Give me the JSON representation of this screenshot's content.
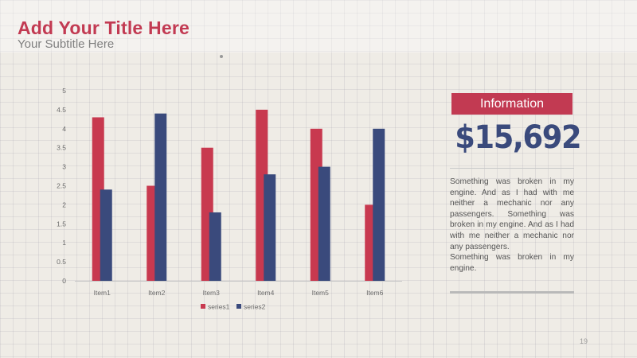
{
  "slide": {
    "title": "Add Your Title Here",
    "subtitle": "Your Subtitle Here",
    "page_number": "19"
  },
  "info": {
    "label": "Information",
    "amount": "$15,692",
    "paragraph1": "Something was broken in my engine. And as I had with me neither a mechanic nor any passengers. Something was broken in my engine. And as I had with me neither a mechanic nor any passengers.",
    "paragraph2": "Something was broken in my engine."
  },
  "colors": {
    "series1": "#c8394f",
    "series2": "#3a4a7c",
    "title": "#c23a52",
    "accent_blue": "#3a4a7c"
  },
  "chart_data": {
    "type": "bar",
    "categories": [
      "Item1",
      "Item2",
      "Item3",
      "Item4",
      "Item5",
      "Item6"
    ],
    "series": [
      {
        "name": "series1",
        "values": [
          4.3,
          2.5,
          3.5,
          4.5,
          4.0,
          2.0
        ]
      },
      {
        "name": "series2",
        "values": [
          2.4,
          4.4,
          1.8,
          2.8,
          3.0,
          4.0
        ]
      }
    ],
    "ylim": [
      0,
      5
    ],
    "yticks": [
      "0",
      "0.5",
      "1",
      "1.5",
      "2",
      "2.5",
      "3",
      "3.5",
      "4",
      "4.5",
      "5"
    ],
    "legend": "bottom",
    "grid": false
  }
}
